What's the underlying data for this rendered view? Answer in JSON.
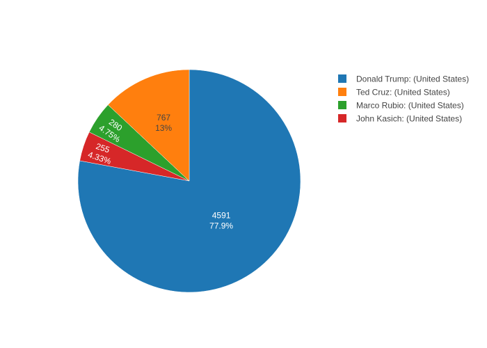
{
  "chart_data": {
    "type": "pie",
    "sort": "descending",
    "direction": "clockwise",
    "start": "12 o'clock",
    "legend_position": "top-right",
    "series": [
      {
        "name": "Donald Trump: (United States)",
        "value": 4591,
        "percent_label": "77.9%",
        "color": "#1f77b4",
        "label_color": "#ffffff"
      },
      {
        "name": "John Kasich: (United States)",
        "value": 255,
        "percent_label": "4.33%",
        "color": "#d62728",
        "label_color": "#ffffff"
      },
      {
        "name": "Marco Rubio: (United States)",
        "value": 280,
        "percent_label": "4.75%",
        "color": "#2ca02c",
        "label_color": "#ffffff"
      },
      {
        "name": "Ted Cruz: (United States)",
        "value": 767,
        "percent_label": "13%",
        "color": "#ff7f0e",
        "label_color": "#444444"
      }
    ],
    "legend_order": [
      "Donald Trump: (United States)",
      "Ted Cruz: (United States)",
      "Marco Rubio: (United States)",
      "John Kasich: (United States)"
    ]
  }
}
